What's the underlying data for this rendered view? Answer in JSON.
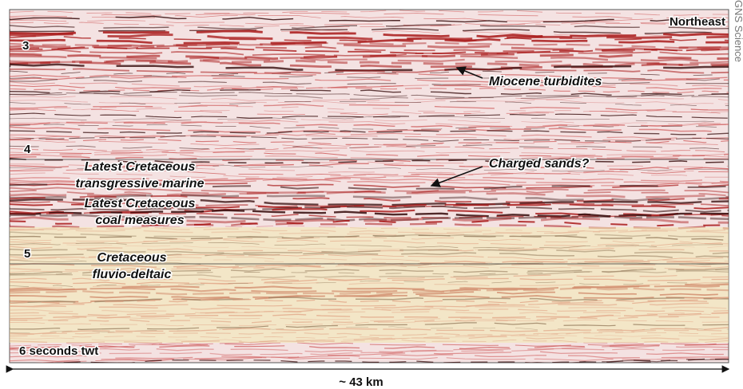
{
  "figure": {
    "orientation": "Northeast",
    "depth_labels": [
      "3",
      "4",
      "5",
      "6 seconds twt"
    ],
    "annotations": [
      {
        "lines": [
          "Miocene turbidites"
        ]
      },
      {
        "lines": [
          "Charged sands?"
        ]
      },
      {
        "lines": [
          "Latest Cretaceous",
          "transgressive marine"
        ]
      },
      {
        "lines": [
          "Latest Cretaceous",
          "coal measures"
        ]
      },
      {
        "lines": [
          "Cretaceous",
          "fluvio-deltaic"
        ]
      }
    ]
  },
  "scale": "~ 43 km",
  "credit": "GNS Science"
}
